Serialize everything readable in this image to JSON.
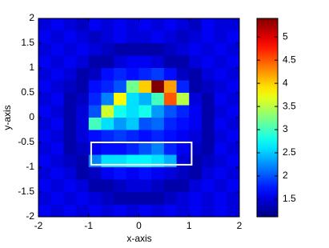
{
  "chart_data": {
    "type": "heatmap",
    "xlabel": "x-axis",
    "ylabel": "y-axis",
    "colormap": "jet",
    "xlim": [
      -2,
      2
    ],
    "ylim": [
      -2,
      2
    ],
    "xticks": [
      -2,
      -1,
      0,
      1,
      2
    ],
    "yticks": [
      -2,
      -1.5,
      -1,
      -0.5,
      0,
      0.5,
      1,
      1.5,
      2
    ],
    "x": [
      -1.875,
      -1.625,
      -1.375,
      -1.125,
      -0.875,
      -0.625,
      -0.375,
      -0.125,
      0.125,
      0.375,
      0.625,
      0.875,
      1.125,
      1.375,
      1.625,
      1.875
    ],
    "y": [
      1.875,
      1.625,
      1.375,
      1.125,
      0.875,
      0.625,
      0.375,
      0.125,
      -0.125,
      -0.375,
      -0.625,
      -0.875,
      -1.125,
      -1.375,
      -1.625,
      -1.875
    ],
    "z": [
      [
        1.5,
        1.6,
        1.5,
        1.4,
        1.6,
        1.5,
        1.6,
        1.5,
        1.6,
        1.5,
        1.6,
        1.5,
        1.4,
        1.6,
        1.5,
        1.5
      ],
      [
        1.6,
        1.5,
        1.6,
        1.5,
        1.4,
        1.5,
        1.6,
        1.5,
        1.5,
        1.6,
        1.5,
        1.4,
        1.5,
        1.6,
        1.5,
        1.6
      ],
      [
        1.5,
        1.6,
        1.5,
        1.6,
        1.5,
        1.4,
        1.3,
        1.3,
        1.3,
        1.3,
        1.4,
        1.5,
        1.6,
        1.5,
        1.6,
        1.5
      ],
      [
        1.6,
        1.5,
        1.6,
        1.5,
        1.3,
        1.3,
        1.5,
        1.6,
        1.6,
        1.5,
        1.3,
        1.3,
        1.5,
        1.6,
        1.5,
        1.6
      ],
      [
        1.5,
        1.6,
        1.5,
        1.3,
        1.4,
        1.7,
        1.8,
        1.7,
        1.8,
        1.9,
        1.7,
        1.4,
        1.3,
        1.5,
        1.6,
        1.5
      ],
      [
        1.6,
        1.5,
        1.4,
        1.3,
        1.7,
        1.8,
        2.0,
        3.2,
        4.0,
        5.4,
        4.2,
        1.8,
        1.3,
        1.4,
        1.5,
        1.6
      ],
      [
        1.5,
        1.6,
        1.3,
        1.4,
        1.8,
        2.2,
        3.8,
        2.6,
        2.4,
        3.0,
        4.5,
        3.5,
        1.5,
        1.3,
        1.6,
        1.5
      ],
      [
        1.6,
        1.5,
        1.3,
        1.5,
        2.0,
        3.6,
        2.8,
        2.6,
        2.8,
        2.3,
        2.0,
        1.8,
        1.6,
        1.3,
        1.5,
        1.6
      ],
      [
        1.5,
        1.6,
        1.3,
        1.5,
        3.0,
        2.6,
        2.3,
        2.5,
        2.0,
        2.1,
        1.8,
        1.7,
        1.6,
        1.3,
        1.6,
        1.5
      ],
      [
        1.6,
        1.5,
        1.3,
        1.5,
        1.7,
        1.8,
        1.9,
        1.8,
        1.7,
        1.8,
        1.7,
        1.6,
        1.5,
        1.3,
        1.5,
        1.6
      ],
      [
        1.5,
        1.6,
        1.3,
        1.4,
        1.6,
        1.7,
        1.7,
        1.8,
        2.0,
        2.2,
        1.8,
        1.6,
        1.4,
        1.3,
        1.6,
        1.5
      ],
      [
        1.6,
        1.5,
        1.4,
        1.3,
        2.2,
        2.6,
        2.6,
        2.7,
        2.7,
        2.6,
        2.4,
        1.5,
        1.3,
        1.4,
        1.5,
        1.6
      ],
      [
        1.5,
        1.6,
        1.5,
        1.3,
        1.4,
        1.6,
        1.7,
        1.6,
        1.7,
        1.6,
        1.5,
        1.4,
        1.3,
        1.5,
        1.6,
        1.5
      ],
      [
        1.6,
        1.5,
        1.6,
        1.5,
        1.3,
        1.3,
        1.4,
        1.5,
        1.5,
        1.4,
        1.3,
        1.3,
        1.5,
        1.6,
        1.5,
        1.6
      ],
      [
        1.5,
        1.6,
        1.5,
        1.6,
        1.5,
        1.4,
        1.3,
        1.3,
        1.3,
        1.3,
        1.4,
        1.5,
        1.6,
        1.5,
        1.6,
        1.5
      ],
      [
        1.6,
        1.5,
        1.6,
        1.5,
        1.6,
        1.5,
        1.6,
        1.5,
        1.6,
        1.5,
        1.6,
        1.5,
        1.6,
        1.5,
        1.6,
        1.5
      ]
    ],
    "zlim": [
      1.12,
      5.4
    ],
    "zticks": [
      1.5,
      2,
      2.5,
      3,
      3.5,
      4,
      4.5,
      5
    ],
    "annotations": [
      {
        "x0": -0.95,
        "x1": 1.05,
        "y0": -0.95,
        "y1": -0.5,
        "color": "#ffffff"
      }
    ]
  }
}
